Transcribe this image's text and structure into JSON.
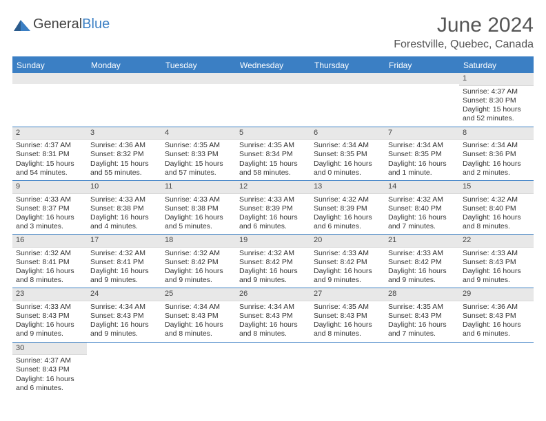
{
  "logo": {
    "text1": "General",
    "text2": "Blue"
  },
  "title": "June 2024",
  "location": "Forestville, Quebec, Canada",
  "dayHeaders": [
    "Sunday",
    "Monday",
    "Tuesday",
    "Wednesday",
    "Thursday",
    "Friday",
    "Saturday"
  ],
  "colors": {
    "accent": "#3b7fc4",
    "headerText": "#ffffff",
    "dayNumBg": "#e8e8e8",
    "text": "#333333"
  },
  "weeks": [
    [
      null,
      null,
      null,
      null,
      null,
      null,
      {
        "n": "1",
        "sr": "4:37 AM",
        "ss": "8:30 PM",
        "dl": "15 hours and 52 minutes."
      }
    ],
    [
      {
        "n": "2",
        "sr": "4:37 AM",
        "ss": "8:31 PM",
        "dl": "15 hours and 54 minutes."
      },
      {
        "n": "3",
        "sr": "4:36 AM",
        "ss": "8:32 PM",
        "dl": "15 hours and 55 minutes."
      },
      {
        "n": "4",
        "sr": "4:35 AM",
        "ss": "8:33 PM",
        "dl": "15 hours and 57 minutes."
      },
      {
        "n": "5",
        "sr": "4:35 AM",
        "ss": "8:34 PM",
        "dl": "15 hours and 58 minutes."
      },
      {
        "n": "6",
        "sr": "4:34 AM",
        "ss": "8:35 PM",
        "dl": "16 hours and 0 minutes."
      },
      {
        "n": "7",
        "sr": "4:34 AM",
        "ss": "8:35 PM",
        "dl": "16 hours and 1 minute."
      },
      {
        "n": "8",
        "sr": "4:34 AM",
        "ss": "8:36 PM",
        "dl": "16 hours and 2 minutes."
      }
    ],
    [
      {
        "n": "9",
        "sr": "4:33 AM",
        "ss": "8:37 PM",
        "dl": "16 hours and 3 minutes."
      },
      {
        "n": "10",
        "sr": "4:33 AM",
        "ss": "8:38 PM",
        "dl": "16 hours and 4 minutes."
      },
      {
        "n": "11",
        "sr": "4:33 AM",
        "ss": "8:38 PM",
        "dl": "16 hours and 5 minutes."
      },
      {
        "n": "12",
        "sr": "4:33 AM",
        "ss": "8:39 PM",
        "dl": "16 hours and 6 minutes."
      },
      {
        "n": "13",
        "sr": "4:32 AM",
        "ss": "8:39 PM",
        "dl": "16 hours and 6 minutes."
      },
      {
        "n": "14",
        "sr": "4:32 AM",
        "ss": "8:40 PM",
        "dl": "16 hours and 7 minutes."
      },
      {
        "n": "15",
        "sr": "4:32 AM",
        "ss": "8:40 PM",
        "dl": "16 hours and 8 minutes."
      }
    ],
    [
      {
        "n": "16",
        "sr": "4:32 AM",
        "ss": "8:41 PM",
        "dl": "16 hours and 8 minutes."
      },
      {
        "n": "17",
        "sr": "4:32 AM",
        "ss": "8:41 PM",
        "dl": "16 hours and 9 minutes."
      },
      {
        "n": "18",
        "sr": "4:32 AM",
        "ss": "8:42 PM",
        "dl": "16 hours and 9 minutes."
      },
      {
        "n": "19",
        "sr": "4:32 AM",
        "ss": "8:42 PM",
        "dl": "16 hours and 9 minutes."
      },
      {
        "n": "20",
        "sr": "4:33 AM",
        "ss": "8:42 PM",
        "dl": "16 hours and 9 minutes."
      },
      {
        "n": "21",
        "sr": "4:33 AM",
        "ss": "8:42 PM",
        "dl": "16 hours and 9 minutes."
      },
      {
        "n": "22",
        "sr": "4:33 AM",
        "ss": "8:43 PM",
        "dl": "16 hours and 9 minutes."
      }
    ],
    [
      {
        "n": "23",
        "sr": "4:33 AM",
        "ss": "8:43 PM",
        "dl": "16 hours and 9 minutes."
      },
      {
        "n": "24",
        "sr": "4:34 AM",
        "ss": "8:43 PM",
        "dl": "16 hours and 9 minutes."
      },
      {
        "n": "25",
        "sr": "4:34 AM",
        "ss": "8:43 PM",
        "dl": "16 hours and 8 minutes."
      },
      {
        "n": "26",
        "sr": "4:34 AM",
        "ss": "8:43 PM",
        "dl": "16 hours and 8 minutes."
      },
      {
        "n": "27",
        "sr": "4:35 AM",
        "ss": "8:43 PM",
        "dl": "16 hours and 8 minutes."
      },
      {
        "n": "28",
        "sr": "4:35 AM",
        "ss": "8:43 PM",
        "dl": "16 hours and 7 minutes."
      },
      {
        "n": "29",
        "sr": "4:36 AM",
        "ss": "8:43 PM",
        "dl": "16 hours and 6 minutes."
      }
    ],
    [
      {
        "n": "30",
        "sr": "4:37 AM",
        "ss": "8:43 PM",
        "dl": "16 hours and 6 minutes."
      },
      null,
      null,
      null,
      null,
      null,
      null
    ]
  ],
  "labels": {
    "sunrise": "Sunrise: ",
    "sunset": "Sunset: ",
    "daylight": "Daylight: "
  }
}
